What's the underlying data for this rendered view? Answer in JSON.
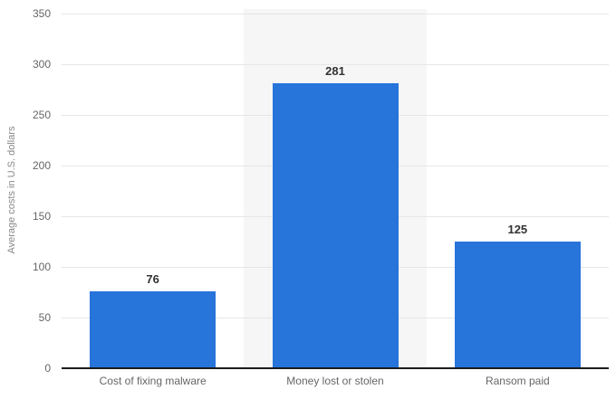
{
  "chart_data": {
    "type": "bar",
    "title": "",
    "ylabel": "Average costs in U.S. dollars",
    "xlabel": "",
    "categories": [
      "Cost of fixing malware",
      "Money lost or stolen",
      "Ransom paid"
    ],
    "values": [
      76,
      281,
      125
    ],
    "data_labels": [
      "76",
      "281",
      "125"
    ],
    "yticks": [
      0,
      50,
      100,
      150,
      200,
      250,
      300,
      350
    ],
    "ylim": [
      0,
      350
    ],
    "grid": true,
    "legend": false,
    "highlighted_column_index": 1
  },
  "colors": {
    "bar": "#2774db",
    "plot_band": "#f6f6f6",
    "gridline": "#e6e6e6",
    "axis_line": "#1c1c1c",
    "tick_label": "#666666",
    "category_label": "#666666",
    "value_label": "#333333",
    "y_axis_title": "#888888",
    "background": "#ffffff"
  }
}
